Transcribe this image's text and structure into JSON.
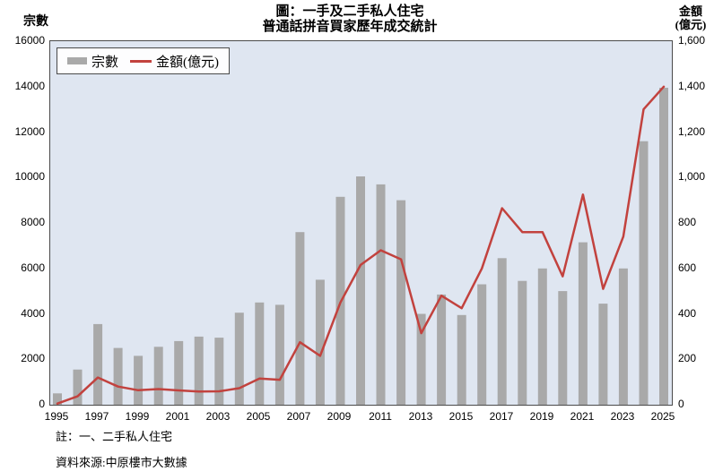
{
  "header": {
    "title_line1": "圖：一手及二手私人住宅",
    "title_line2": "普通話拼音買家歷年成交統計",
    "left_axis_title": "宗數",
    "right_axis_title_line1": "金額",
    "right_axis_title_line2": "(億元)"
  },
  "legend": {
    "bars_label": "宗數",
    "line_label": "金額(億元)"
  },
  "footnotes": {
    "note": "註：一、二手私人住宅",
    "source": "資料來源:中原樓市大數據"
  },
  "colors": {
    "bar": "#a9a9a9",
    "line": "#c2423e",
    "plot_bg": "#dfe6f1",
    "plot_border": "#4a4a4a",
    "text": "#000000"
  },
  "chart_data": {
    "type": "combo-bar-line",
    "title": "圖：一手及二手私人住宅 普通話拼音買家歷年成交統計",
    "categories": [
      1995,
      1996,
      1997,
      1998,
      1999,
      2000,
      2001,
      2002,
      2003,
      2004,
      2005,
      2006,
      2007,
      2008,
      2009,
      2010,
      2011,
      2012,
      2013,
      2014,
      2015,
      2016,
      2017,
      2018,
      2019,
      2020,
      2021,
      2022,
      2023,
      2024,
      2025
    ],
    "series": [
      {
        "name": "宗數",
        "type": "bar",
        "axis": "left",
        "values": [
          500,
          1550,
          3550,
          2500,
          2150,
          2550,
          2800,
          3000,
          2950,
          4050,
          4500,
          4400,
          7600,
          5500,
          9150,
          10050,
          9700,
          9000,
          4000,
          4850,
          3950,
          5300,
          6450,
          5450,
          6000,
          5000,
          7150,
          4450,
          6000,
          11600,
          13950
        ]
      },
      {
        "name": "金額(億元)",
        "type": "line",
        "axis": "right",
        "values": [
          5,
          37,
          120,
          80,
          64,
          69,
          63,
          58,
          59,
          73,
          115,
          110,
          275,
          215,
          450,
          615,
          680,
          640,
          315,
          480,
          425,
          600,
          865,
          760,
          760,
          565,
          925,
          510,
          740,
          1300,
          1400
        ]
      }
    ],
    "left_axis": {
      "title": "宗數",
      "min": 0,
      "max": 16000,
      "step": 2000,
      "tick_values": [
        0,
        2000,
        4000,
        6000,
        8000,
        10000,
        12000,
        14000,
        16000
      ],
      "tick_labels": [
        "0",
        "2000",
        "4000",
        "6000",
        "8000",
        "10000",
        "12000",
        "14000",
        "16000"
      ]
    },
    "right_axis": {
      "title": "金額(億元)",
      "min": 0,
      "max": 1600,
      "step": 200,
      "tick_values": [
        0,
        200,
        400,
        600,
        800,
        1000,
        1200,
        1400,
        1600
      ],
      "tick_labels": [
        "0",
        "200",
        "400",
        "600",
        "800",
        "1,000",
        "1,200",
        "1,400",
        "1,600"
      ]
    },
    "x_tick_labels": [
      "1995",
      "1997",
      "1999",
      "2001",
      "2003",
      "2005",
      "2007",
      "2009",
      "2011",
      "2013",
      "2015",
      "2017",
      "2019",
      "2021",
      "2023",
      "2025"
    ],
    "grid": false,
    "legend_position": "top-left-inside"
  }
}
